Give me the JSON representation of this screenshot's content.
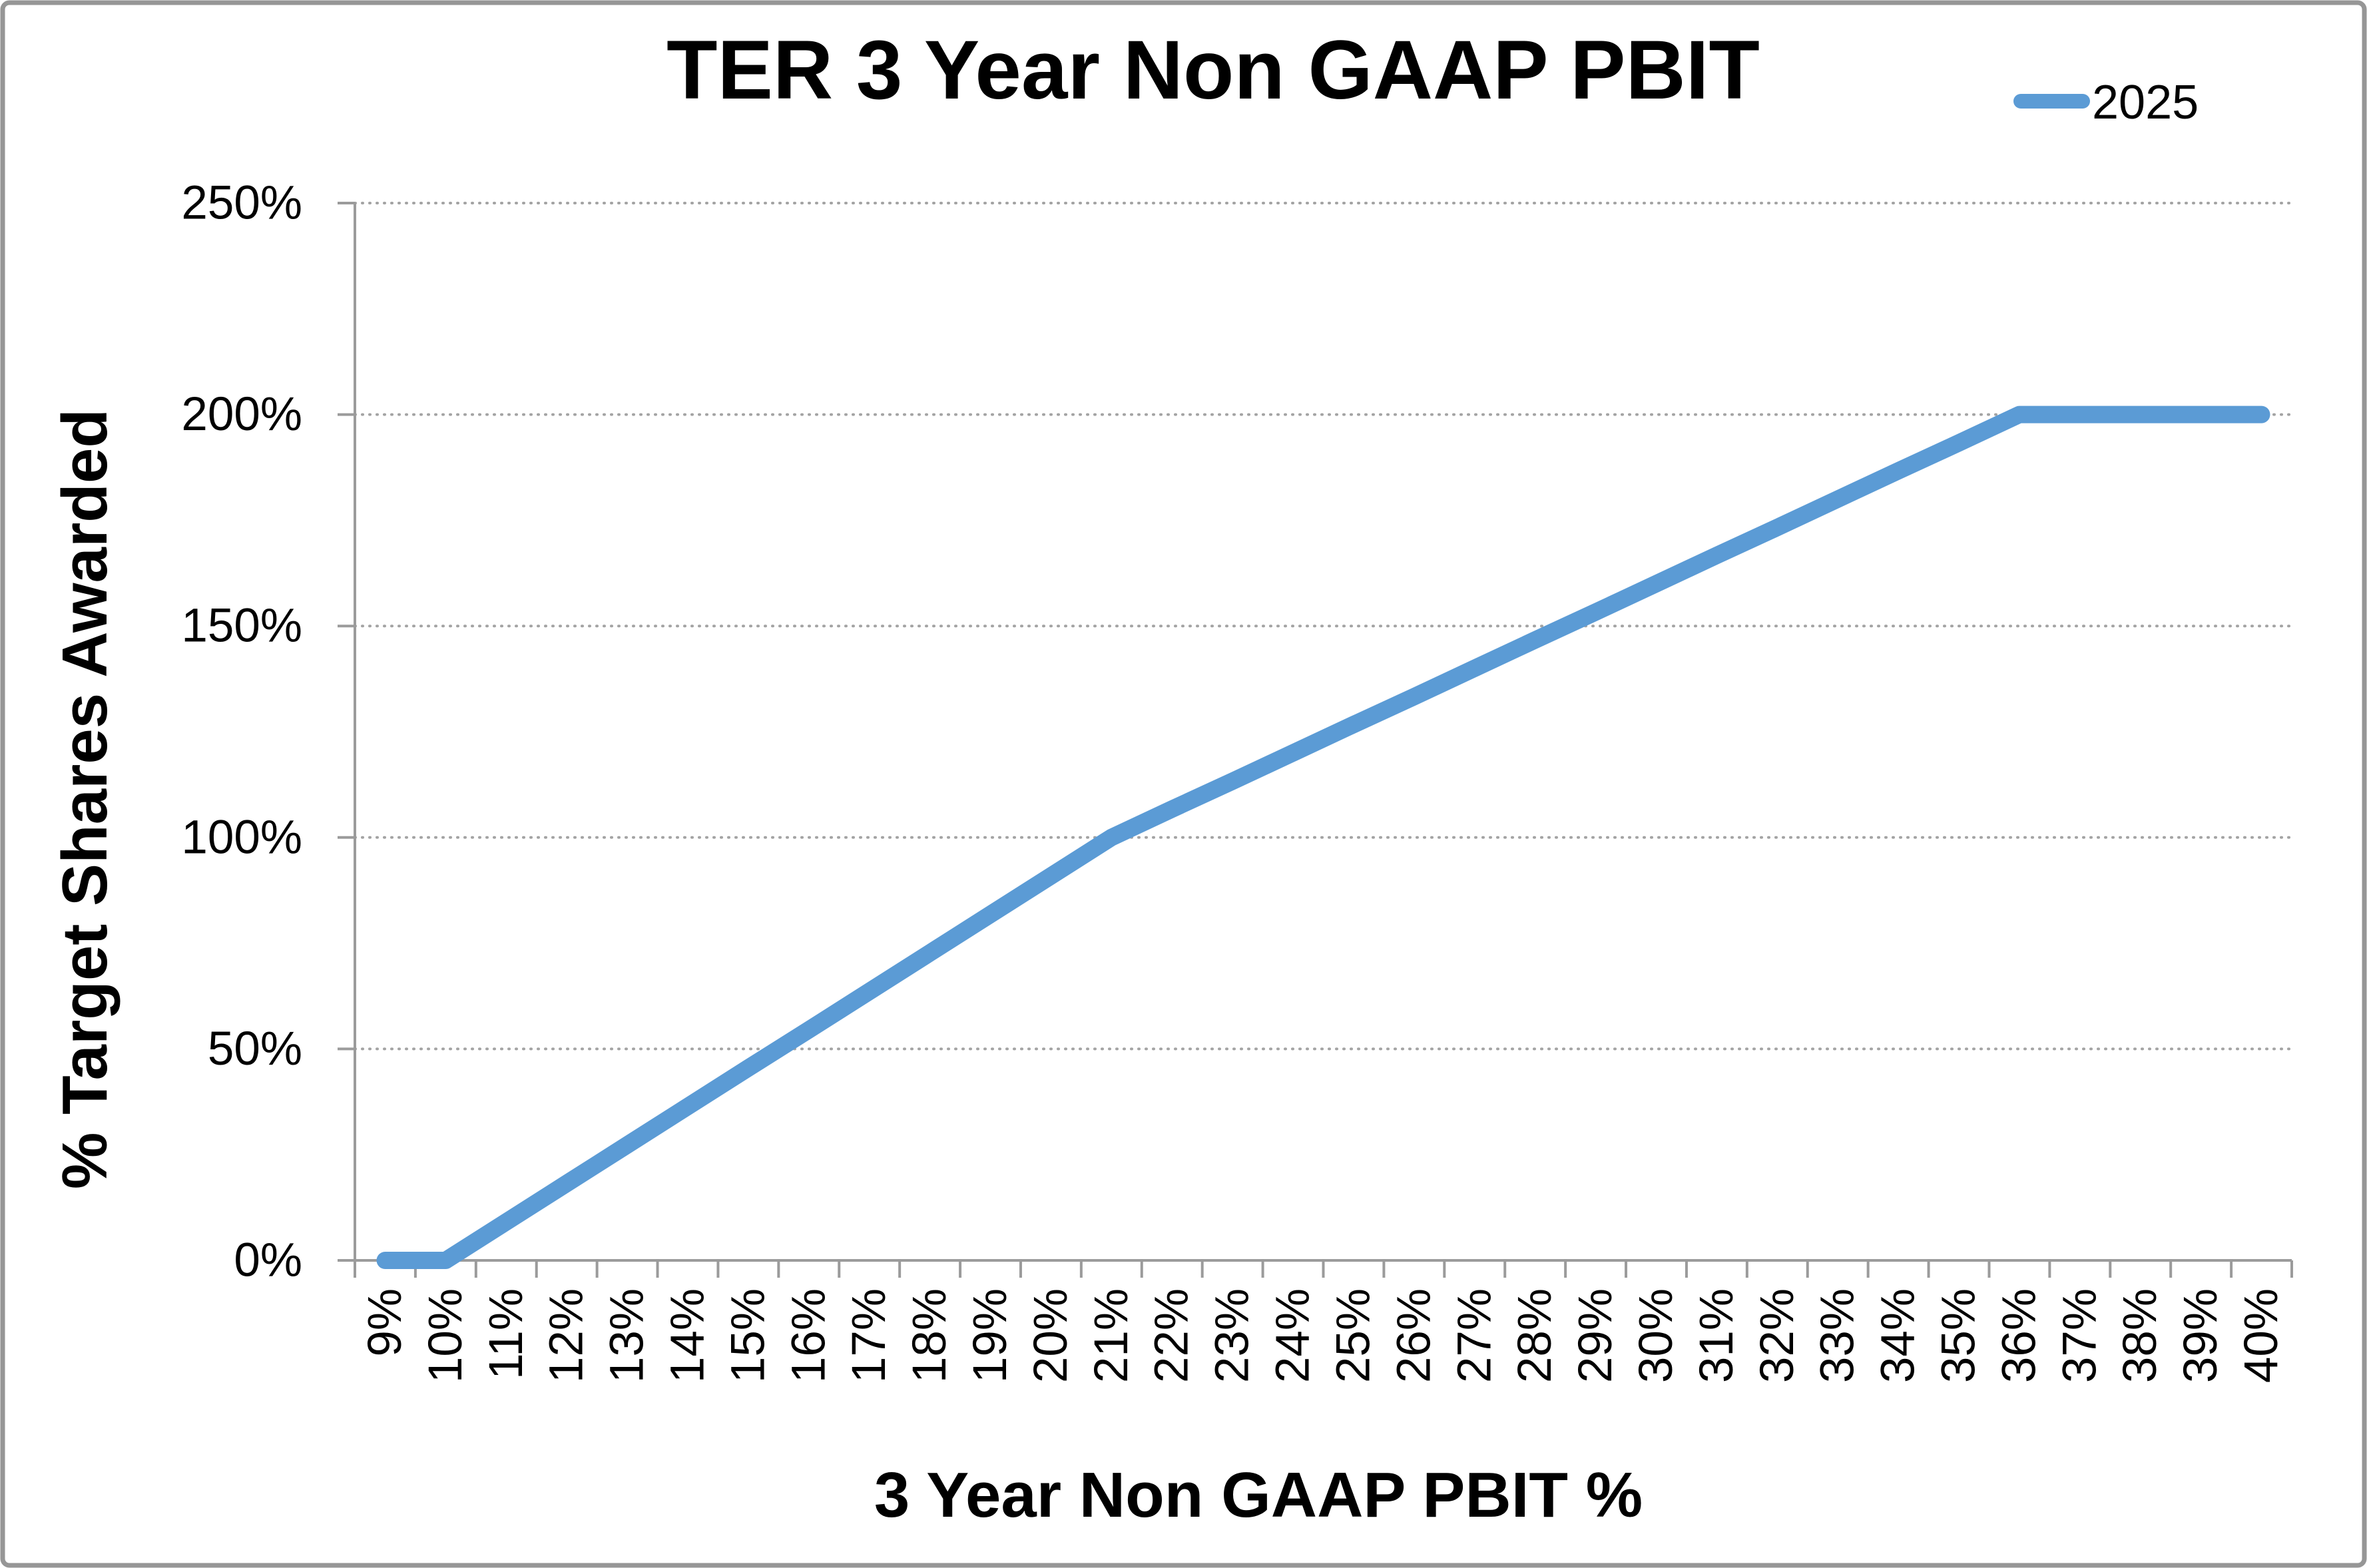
{
  "chart": {
    "title": "TER 3 Year Non GAAP PBIT",
    "x_axis_title": "3 Year Non GAAP PBIT %",
    "y_axis_title": "% Target Shares Awarded",
    "legend": {
      "label": "2025",
      "marker_color": "#5B9BD5"
    }
  },
  "chart_data": {
    "type": "line",
    "title": "TER 3 Year Non GAAP PBIT",
    "xlabel": "3 Year Non GAAP PBIT %",
    "ylabel": "% Target Shares Awarded",
    "categories": [
      "9%",
      "10%",
      "11%",
      "12%",
      "13%",
      "14%",
      "15%",
      "16%",
      "17%",
      "18%",
      "19%",
      "20%",
      "21%",
      "22%",
      "23%",
      "24%",
      "25%",
      "26%",
      "27%",
      "28%",
      "29%",
      "30%",
      "31%",
      "32%",
      "33%",
      "34%",
      "35%",
      "36%",
      "37%",
      "38%",
      "39%",
      "40%"
    ],
    "series": [
      {
        "name": "2025",
        "color": "#5B9BD5",
        "values": [
          0,
          0,
          9.1,
          18.2,
          27.3,
          36.4,
          45.5,
          54.5,
          63.6,
          72.7,
          81.8,
          90.9,
          100,
          106.7,
          113.3,
          120,
          126.7,
          133.3,
          140,
          146.7,
          153.3,
          160,
          166.7,
          173.3,
          180,
          186.7,
          193.3,
          200,
          200,
          200,
          200,
          200
        ]
      }
    ],
    "key_points": [
      {
        "x": "9%",
        "y": 0
      },
      {
        "x": "10%",
        "y": 0
      },
      {
        "x": "21%",
        "y": 100
      },
      {
        "x": "36%",
        "y": 200
      },
      {
        "x": "40%",
        "y": 200
      }
    ],
    "ylim": [
      0,
      250
    ],
    "y_tick_labels": [
      "0%",
      "50%",
      "100%",
      "150%",
      "200%",
      "250%"
    ],
    "grid": "horizontal dotted gridlines every 50%",
    "legend_position": "top-right",
    "x_tick_label_rotation_deg": 90
  },
  "colors": {
    "series_line": "#5B9BD5",
    "axis_line": "#9B9B9B",
    "gridline": "#A3A3A3",
    "text": "#000000",
    "frame_border": "#969696",
    "background": "#FFFFFF"
  }
}
